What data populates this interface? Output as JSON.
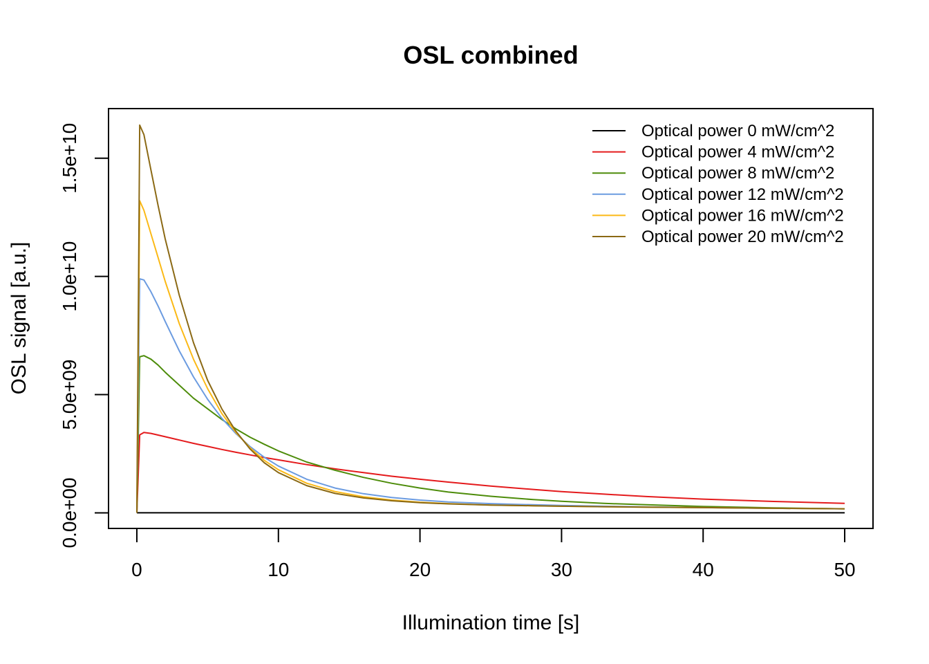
{
  "chart_data": {
    "type": "line",
    "title": "OSL combined",
    "xlabel": "Illumination time [s]",
    "ylabel": "OSL signal [a.u.]",
    "xlim": [
      -2,
      52
    ],
    "ylim": [
      -660000000.0,
      17100000000.0
    ],
    "x_ticks": [
      0,
      10,
      20,
      30,
      40,
      50
    ],
    "x_tick_labels": [
      "0",
      "10",
      "20",
      "30",
      "40",
      "50"
    ],
    "y_ticks": [
      0,
      5000000000,
      10000000000,
      15000000000
    ],
    "y_tick_labels": [
      "0.0e+00",
      "5.0e+09",
      "1.0e+10",
      "1.5e+10"
    ],
    "grid": false,
    "legend_position": "top-right",
    "x": [
      0,
      0.2,
      0.5,
      1,
      1.5,
      2,
      3,
      4,
      5,
      6,
      7,
      8,
      9,
      10,
      12,
      14,
      16,
      18,
      20,
      22,
      25,
      28,
      30,
      33,
      36,
      40,
      45,
      50
    ],
    "series": [
      {
        "name": "Optical power  0  mW/cm^2",
        "color": "#000000",
        "values": [
          0,
          0,
          0,
          0,
          0,
          0,
          0,
          0,
          0,
          0,
          0,
          0,
          0,
          0,
          0,
          0,
          0,
          0,
          0,
          0,
          0,
          0,
          0,
          0,
          0,
          0,
          0,
          0
        ]
      },
      {
        "name": "Optical power  4  mW/cm^2",
        "color": "#e41a1c",
        "values": [
          0,
          3300000000.0,
          3400000000.0,
          3360000000.0,
          3290000000.0,
          3220000000.0,
          3080000000.0,
          2940000000.0,
          2810000000.0,
          2680000000.0,
          2560000000.0,
          2450000000.0,
          2340000000.0,
          2240000000.0,
          2040000000.0,
          1860000000.0,
          1700000000.0,
          1550000000.0,
          1420000000.0,
          1300000000.0,
          1130000000.0,
          990000000.0,
          900000000.0,
          790000000.0,
          690000000.0,
          580000000.0,
          480000000.0,
          400000000.0
        ]
      },
      {
        "name": "Optical power  8  mW/cm^2",
        "color": "#4d8c0a",
        "values": [
          0,
          6600000000.0,
          6650000000.0,
          6500000000.0,
          6250000000.0,
          5950000000.0,
          5400000000.0,
          4850000000.0,
          4400000000.0,
          3950000000.0,
          3550000000.0,
          3200000000.0,
          2900000000.0,
          2620000000.0,
          2150000000.0,
          1800000000.0,
          1500000000.0,
          1250000000.0,
          1050000000.0,
          880000000.0,
          700000000.0,
          560000000.0,
          490000000.0,
          400000000.0,
          340000000.0,
          270000000.0,
          210000000.0,
          170000000.0
        ]
      },
      {
        "name": "Optical power  12  mW/cm^2",
        "color": "#6b9be0",
        "values": [
          0,
          9900000000.0,
          9850000000.0,
          9350000000.0,
          8750000000.0,
          8100000000.0,
          6850000000.0,
          5750000000.0,
          4800000000.0,
          4000000000.0,
          3350000000.0,
          2800000000.0,
          2350000000.0,
          1980000000.0,
          1420000000.0,
          1050000000.0,
          810000000.0,
          650000000.0,
          540000000.0,
          460000000.0,
          390000000.0,
          340000000.0,
          310000000.0,
          280000000.0,
          250000000.0,
          220000000.0,
          190000000.0,
          170000000.0
        ]
      },
      {
        "name": "Optical power  16  mW/cm^2",
        "color": "#fbb916",
        "values": [
          0,
          13200000000.0,
          12800000000.0,
          11800000000.0,
          10800000000.0,
          9800000000.0,
          8000000000.0,
          6500000000.0,
          5250000000.0,
          4200000000.0,
          3400000000.0,
          2750000000.0,
          2220000000.0,
          1820000000.0,
          1250000000.0,
          900000000.0,
          680000000.0,
          540000000.0,
          450000000.0,
          390000000.0,
          330000000.0,
          300000000.0,
          280000000.0,
          260000000.0,
          240000000.0,
          220000000.0,
          190000000.0,
          170000000.0
        ]
      },
      {
        "name": "Optical power  20  mW/cm^2",
        "color": "#8b6914",
        "values": [
          0,
          16400000000.0,
          16000000000.0,
          14500000000.0,
          13000000000.0,
          11600000000.0,
          9200000000.0,
          7200000000.0,
          5600000000.0,
          4400000000.0,
          3450000000.0,
          2700000000.0,
          2120000000.0,
          1700000000.0,
          1150000000.0,
          820000000.0,
          630000000.0,
          510000000.0,
          430000000.0,
          380000000.0,
          330000000.0,
          300000000.0,
          280000000.0,
          260000000.0,
          240000000.0,
          220000000.0,
          190000000.0,
          170000000.0
        ]
      }
    ]
  }
}
